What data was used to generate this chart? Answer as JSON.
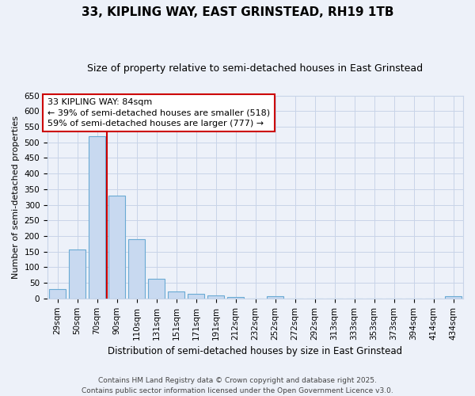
{
  "title": "33, KIPLING WAY, EAST GRINSTEAD, RH19 1TB",
  "subtitle": "Size of property relative to semi-detached houses in East Grinstead",
  "xlabel": "Distribution of semi-detached houses by size in East Grinstead",
  "ylabel": "Number of semi-detached properties",
  "categories": [
    "29sqm",
    "50sqm",
    "70sqm",
    "90sqm",
    "110sqm",
    "131sqm",
    "151sqm",
    "171sqm",
    "191sqm",
    "212sqm",
    "232sqm",
    "252sqm",
    "272sqm",
    "292sqm",
    "313sqm",
    "333sqm",
    "353sqm",
    "373sqm",
    "394sqm",
    "414sqm",
    "434sqm"
  ],
  "values": [
    30,
    158,
    520,
    330,
    190,
    62,
    23,
    14,
    10,
    5,
    0,
    8,
    0,
    0,
    0,
    0,
    0,
    0,
    0,
    0,
    6
  ],
  "bar_color": "#c8d9f0",
  "bar_edge_color": "#6aaad4",
  "grid_color": "#c8d4e8",
  "background_color": "#edf1f9",
  "vline_color": "#cc0000",
  "vline_x": 2.5,
  "annotation_line1": "33 KIPLING WAY: 84sqm",
  "annotation_line2": "← 39% of semi-detached houses are smaller (518)",
  "annotation_line3": "59% of semi-detached houses are larger (777) →",
  "annotation_box_facecolor": "#ffffff",
  "annotation_box_edgecolor": "#cc0000",
  "ylim_max": 650,
  "yticks": [
    0,
    50,
    100,
    150,
    200,
    250,
    300,
    350,
    400,
    450,
    500,
    550,
    600,
    650
  ],
  "footer_text": "Contains HM Land Registry data © Crown copyright and database right 2025.\nContains public sector information licensed under the Open Government Licence v3.0.",
  "title_fontsize": 11,
  "subtitle_fontsize": 9,
  "xlabel_fontsize": 8.5,
  "ylabel_fontsize": 8,
  "tick_fontsize": 7.5,
  "annotation_fontsize": 8,
  "footer_fontsize": 6.5
}
